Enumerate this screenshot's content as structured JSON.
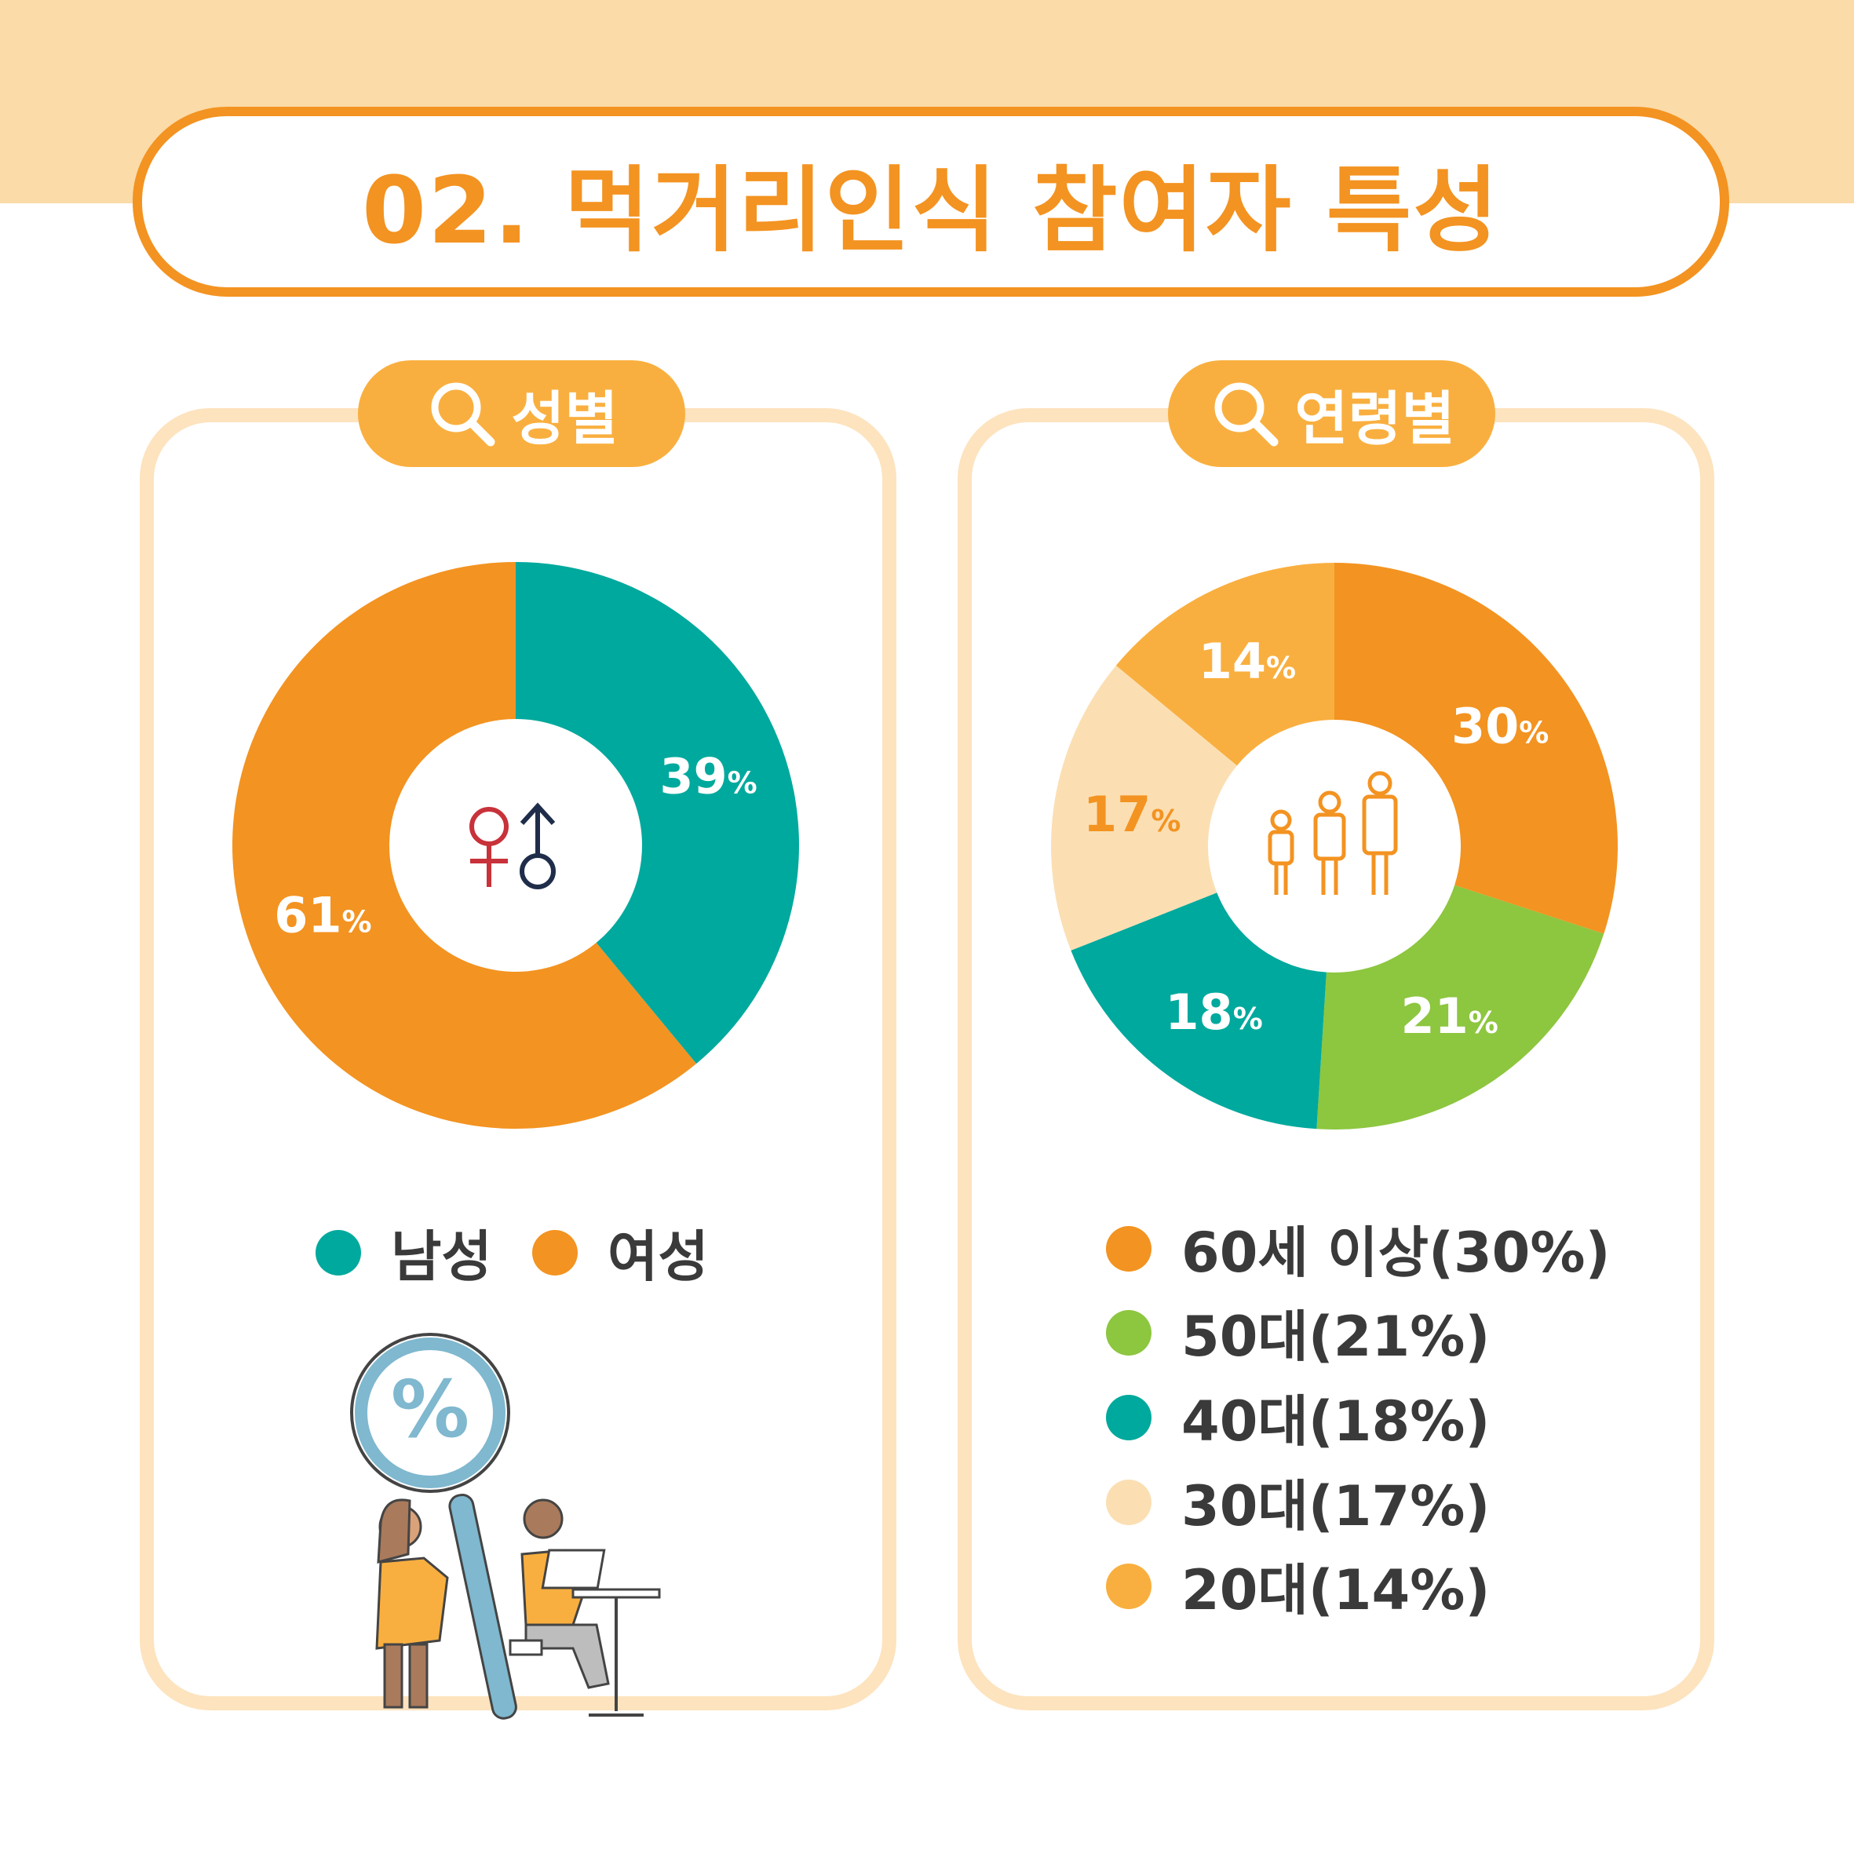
{
  "title": "02. 먹거리인식 참여자 특성",
  "sections": {
    "gender": {
      "label": "성별"
    },
    "age": {
      "label": "연령별"
    }
  },
  "chart_data": [
    {
      "type": "pie",
      "title": "성별",
      "categories": [
        "남성",
        "여성"
      ],
      "values": [
        39,
        61
      ],
      "colors": [
        "#00A99D",
        "#F39321"
      ],
      "value_labels": [
        "39%",
        "61%"
      ],
      "legend": [
        "남성",
        "여성"
      ],
      "legend_placement": "bottom"
    },
    {
      "type": "pie",
      "title": "연령별",
      "categories": [
        "60세 이상",
        "50대",
        "40대",
        "30대",
        "20대"
      ],
      "values": [
        30,
        21,
        18,
        17,
        14
      ],
      "colors": [
        "#F39321",
        "#8DC63F",
        "#00A99D",
        "#FBDFB3",
        "#F9AF3F"
      ],
      "label_colors": [
        "#ffffff",
        "#ffffff",
        "#ffffff",
        "#F39321",
        "#ffffff"
      ],
      "value_labels": [
        "30%",
        "21%",
        "18%",
        "17%",
        "14%"
      ],
      "legend": [
        "60세 이상(30%)",
        "50대(21%)",
        "40대(18%)",
        "30대(17%)",
        "20대(14%)"
      ],
      "legend_placement": "bottom"
    }
  ]
}
